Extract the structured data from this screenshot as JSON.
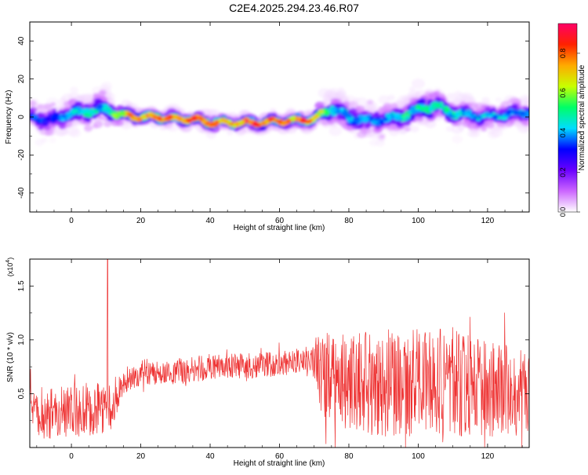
{
  "title": "C2E4.2025.294.23.46.R07",
  "colorbar": {
    "label": "Normalized spectral amplitude",
    "ticks": [
      "0.0",
      "0.2",
      "0.4",
      "0.6",
      "0.8"
    ],
    "tick_values": [
      0.0,
      0.2,
      0.4,
      0.6,
      0.8
    ],
    "range": [
      0,
      0.95
    ],
    "stops": [
      "#ffffff",
      "#cc66ff",
      "#6a00ff",
      "#0000ff",
      "#00ddff",
      "#00ff66",
      "#c8ff00",
      "#ffaa00",
      "#ff2200",
      "#ff0066"
    ]
  },
  "chart_data": [
    {
      "type": "heatmap",
      "xlabel": "Height of straight line (km)",
      "ylabel": "Frequency (Hz)",
      "xlim": [
        -12,
        132
      ],
      "ylim": [
        -50,
        50
      ],
      "x_ticks": [
        0,
        20,
        40,
        60,
        80,
        100,
        120
      ],
      "x_tick_labels": [
        "0",
        "20",
        "40",
        "60",
        "80",
        "100",
        "120"
      ],
      "y_ticks": [
        -40,
        -20,
        0,
        20,
        40
      ],
      "y_tick_labels": [
        "-40",
        "-20",
        "0",
        "20",
        "40"
      ],
      "ridge": {
        "x": [
          -12,
          -6,
          0,
          5,
          10,
          15,
          20,
          25,
          30,
          35,
          40,
          45,
          50,
          55,
          60,
          65,
          70,
          73,
          75,
          80,
          85,
          90,
          95,
          100,
          105,
          110,
          115,
          120,
          125,
          132
        ],
        "center_hz": [
          0,
          -2,
          2,
          3,
          4,
          1,
          0,
          0,
          -1,
          -1,
          -3,
          -3,
          -3,
          -3,
          -2,
          -2,
          -1,
          2,
          5,
          0,
          -2,
          -1,
          0,
          4,
          6,
          2,
          1,
          0,
          1,
          3
        ],
        "half_width_hz": [
          10,
          12,
          11,
          11,
          10,
          5,
          4,
          4,
          4,
          4,
          4,
          4,
          4,
          4,
          4,
          4,
          4,
          8,
          10,
          11,
          12,
          11,
          10,
          11,
          10,
          10,
          10,
          9,
          9,
          9
        ],
        "peak_amplitude": [
          0.4,
          0.35,
          0.45,
          0.5,
          0.5,
          0.75,
          0.9,
          0.9,
          0.85,
          0.85,
          0.9,
          0.85,
          0.9,
          0.9,
          0.85,
          0.9,
          0.85,
          0.6,
          0.5,
          0.45,
          0.4,
          0.45,
          0.5,
          0.55,
          0.55,
          0.5,
          0.45,
          0.45,
          0.45,
          0.45
        ]
      }
    },
    {
      "type": "line",
      "xlabel": "Height of straight line (km)",
      "ylabel": "SNR (10 * v/v)",
      "y_multiplier": "(x10",
      "y_multiplier_exp": "4",
      "y_multiplier_close": ")",
      "xlim": [
        -12,
        132
      ],
      "ylim": [
        0,
        1.75
      ],
      "x_ticks": [
        0,
        20,
        40,
        60,
        80,
        100,
        120
      ],
      "x_tick_labels": [
        "0",
        "20",
        "40",
        "60",
        "80",
        "100",
        "120"
      ],
      "y_ticks": [
        0.5,
        1.0,
        1.5
      ],
      "y_tick_labels": [
        "0.5",
        "1.0",
        "1.5"
      ],
      "color": "#ee3333",
      "envelope": {
        "x": [
          -12,
          0,
          10,
          12,
          15,
          20,
          30,
          40,
          50,
          60,
          65,
          70,
          72,
          80,
          90,
          100,
          110,
          120,
          132
        ],
        "baseline": [
          0.3,
          0.35,
          0.35,
          0.4,
          0.6,
          0.68,
          0.7,
          0.75,
          0.76,
          0.78,
          0.8,
          0.8,
          0.7,
          0.6,
          0.6,
          0.6,
          0.6,
          0.55,
          0.5
        ],
        "spread": [
          0.25,
          0.25,
          0.25,
          0.2,
          0.1,
          0.1,
          0.12,
          0.12,
          0.12,
          0.12,
          0.12,
          0.15,
          0.4,
          0.45,
          0.5,
          0.5,
          0.5,
          0.45,
          0.4
        ]
      }
    }
  ]
}
